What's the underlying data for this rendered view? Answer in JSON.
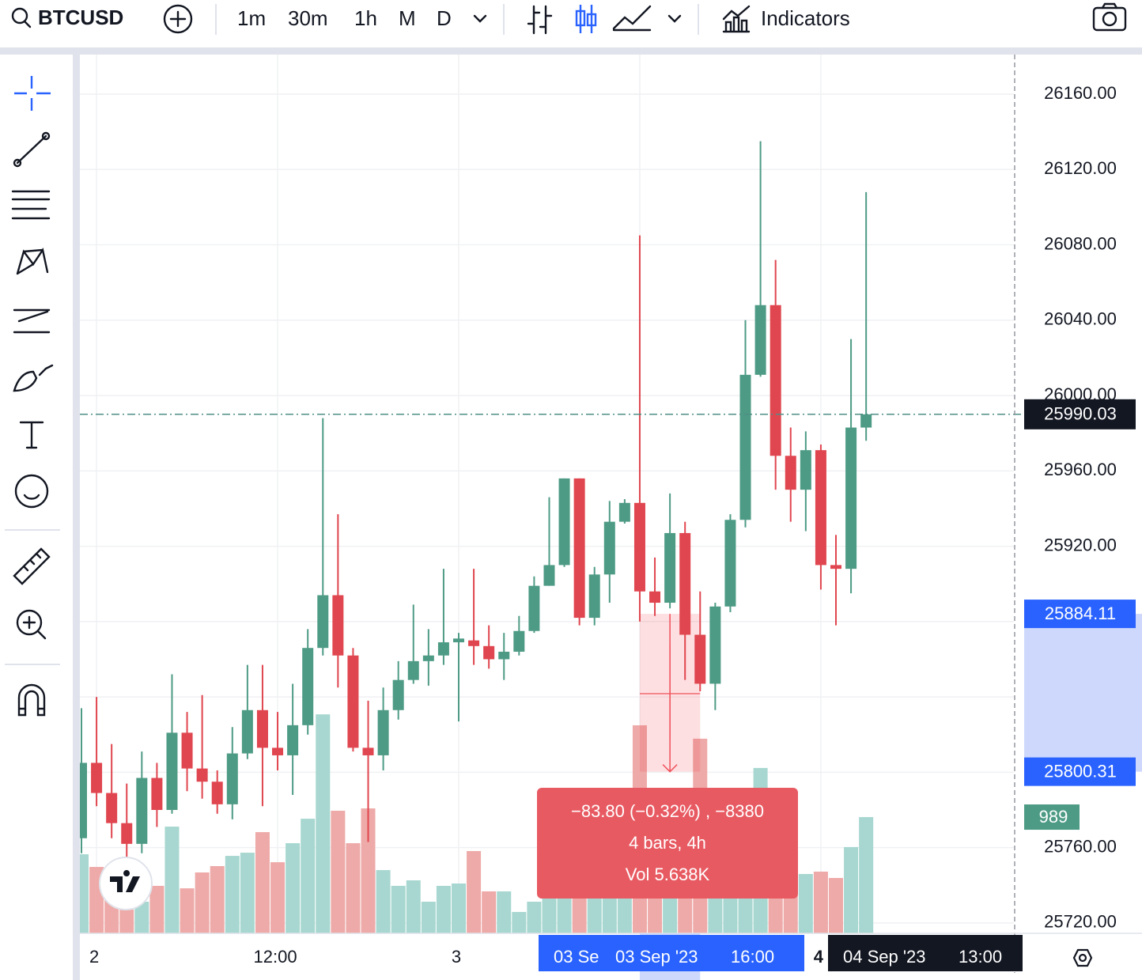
{
  "ui": {
    "symbol": "BTCUSD",
    "intervals": [
      "1m",
      "30m",
      "1h",
      "M",
      "D"
    ],
    "active_interval": "1h",
    "indicators": "Indicators"
  },
  "chart_data": {
    "type": "candlestick",
    "categories": [
      null,
      "2",
      null,
      null,
      null,
      null,
      null,
      null,
      null,
      null,
      null,
      null,
      null,
      "12:00",
      null,
      null,
      null,
      null,
      null,
      null,
      null,
      null,
      null,
      null,
      null,
      "3",
      null,
      null,
      null,
      null,
      null,
      null,
      null,
      null,
      null,
      null,
      null,
      null,
      null,
      null,
      null,
      null,
      null,
      null,
      null,
      null,
      null,
      null,
      null,
      "4",
      null,
      null,
      null
    ],
    "open": [
      25765,
      25805,
      25789,
      25773,
      25762,
      25797,
      25780,
      25821,
      25802,
      25795,
      25783,
      25810,
      25833,
      25813,
      25809,
      25825,
      25866,
      25894,
      25862,
      25813,
      25809,
      25833,
      25849,
      25859,
      25862,
      25869,
      25870,
      25867,
      25860,
      25864,
      25875,
      25899,
      25910,
      25956,
      25882,
      25905,
      25933,
      25943,
      25896,
      25890,
      25927,
      25873,
      25847,
      25888,
      25934,
      26011,
      26048,
      25968,
      25950,
      25971,
      25910,
      25908,
      25983
    ],
    "high": [
      25834,
      25840,
      25815,
      25794,
      25811,
      25805,
      25852,
      25832,
      25841,
      25801,
      25824,
      25857,
      25857,
      25832,
      25847,
      25876,
      25988,
      25937,
      25866,
      25838,
      25845,
      25859,
      25889,
      25876,
      25908,
      25874,
      25908,
      25878,
      25874,
      25883,
      25904,
      25946,
      25956,
      25956,
      25909,
      25944,
      25945,
      26085,
      25914,
      25948,
      25933,
      25896,
      25890,
      25937,
      26040,
      26135,
      26072,
      25983,
      25981,
      25974,
      25926,
      26030,
      26108
    ],
    "low": [
      25757,
      25782,
      25765,
      25752,
      25757,
      25771,
      25778,
      25790,
      25786,
      25778,
      25775,
      25807,
      25782,
      25801,
      25788,
      25820,
      25862,
      25845,
      25811,
      25763,
      25801,
      25828,
      25847,
      25846,
      25857,
      25827,
      25857,
      25855,
      25849,
      25862,
      25874,
      25899,
      25909,
      25878,
      25878,
      25890,
      25932,
      25880,
      25883,
      25887,
      25849,
      25843,
      25833,
      25885,
      25930,
      26010,
      25950,
      25933,
      25928,
      25897,
      25878,
      25895,
      25976
    ],
    "close": [
      25805,
      25789,
      25773,
      25762,
      25797,
      25780,
      25821,
      25802,
      25795,
      25783,
      25810,
      25833,
      25813,
      25809,
      25825,
      25866,
      25894,
      25862,
      25813,
      25809,
      25833,
      25849,
      25859,
      25862,
      25869,
      25871,
      25867,
      25860,
      25864,
      25875,
      25899,
      25910,
      25956,
      25882,
      25905,
      25933,
      25943,
      25896,
      25890,
      25927,
      25873,
      25847,
      25888,
      25934,
      26011,
      26048,
      25968,
      25950,
      25971,
      25910,
      25908,
      25983,
      25990.03
    ],
    "volume": [
      673,
      565,
      336,
      202,
      269,
      404,
      908,
      383,
      518,
      572,
      659,
      686,
      861,
      605,
      767,
      975,
      1863,
      1043,
      767,
      1063,
      538,
      404,
      451,
      269,
      404,
      424,
      700,
      357,
      357,
      182,
      269,
      404,
      673,
      538,
      404,
      471,
      336,
      1770,
      1211,
      673,
      808,
      1656,
      605,
      538,
      740,
      1407,
      673,
      471,
      505,
      525,
      471,
      734,
      989
    ],
    "up_color": "#4e9b85",
    "down_color": "#e0464f",
    "up_volume_color": "#a7d7d0",
    "down_volume_color": "#eeaaa8",
    "ylim": [
      25714.5,
      26181
    ],
    "yticks": [
      {
        "value": 25720,
        "label": "25720.00"
      },
      {
        "value": 25760,
        "label": "25760.00"
      },
      {
        "value": 25800,
        "label": "25800.00"
      },
      {
        "value": 25840,
        "label": "25840.00"
      },
      {
        "value": 25880,
        "label": "25880.00"
      },
      {
        "value": 25920,
        "label": "25920.00"
      },
      {
        "value": 25960,
        "label": "25960.00"
      },
      {
        "value": 26000,
        "label": "26000.00"
      },
      {
        "value": 26040,
        "label": "26040.00"
      },
      {
        "value": 26080,
        "label": "26080.00"
      },
      {
        "value": 26120,
        "label": "26120.00"
      },
      {
        "value": 26160,
        "label": "26160.00"
      }
    ],
    "grid": true,
    "measure": {
      "top": 25884.11,
      "bottom": 25800.31,
      "from_index": 37,
      "to_index": 41,
      "lines": [
        "−83.80 (−0.32%) , −8380",
        "4 bars, 4h",
        "Vol 5.638K"
      ]
    },
    "range_start_label": "03 Se",
    "crosshair_time": [
      "03 Sep '23",
      "16:00"
    ],
    "last_time": [
      "04 Sep '23",
      "13:00"
    ]
  }
}
